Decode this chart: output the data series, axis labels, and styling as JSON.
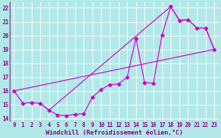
{
  "xlabel": "Windchill (Refroidissement éolien,°C)",
  "background_color": "#b2e8e8",
  "grid_color": "#ffffff",
  "line_color": "#cc00cc",
  "xlim": [
    -0.5,
    23.5
  ],
  "ylim": [
    13.8,
    22.4
  ],
  "xticks": [
    0,
    1,
    2,
    3,
    4,
    5,
    6,
    7,
    8,
    9,
    10,
    11,
    12,
    13,
    14,
    15,
    16,
    17,
    18,
    19,
    20,
    21,
    22,
    23
  ],
  "yticks": [
    14,
    15,
    16,
    17,
    18,
    19,
    20,
    21,
    22
  ],
  "curve1": [
    [
      0,
      16.0
    ],
    [
      1,
      15.1
    ],
    [
      2,
      15.15
    ],
    [
      3,
      15.1
    ],
    [
      4,
      14.6
    ],
    [
      5,
      14.25
    ],
    [
      6,
      14.2
    ],
    [
      7,
      14.3
    ],
    [
      8,
      14.35
    ],
    [
      9,
      15.55
    ],
    [
      10,
      16.1
    ],
    [
      11,
      16.45
    ],
    [
      12,
      16.5
    ],
    [
      13,
      17.0
    ],
    [
      14,
      19.8
    ],
    [
      15,
      16.6
    ],
    [
      16,
      16.55
    ],
    [
      17,
      20.05
    ],
    [
      18,
      22.1
    ],
    [
      19,
      21.1
    ],
    [
      20,
      21.15
    ],
    [
      21,
      20.55
    ],
    [
      22,
      20.55
    ],
    [
      23,
      19.0
    ]
  ],
  "curve2": [
    [
      0,
      16.0
    ],
    [
      23,
      19.0
    ]
  ],
  "curve3": [
    [
      3,
      15.1
    ],
    [
      4,
      14.6
    ],
    [
      18,
      22.1
    ],
    [
      19,
      21.1
    ],
    [
      20,
      21.15
    ],
    [
      21,
      20.55
    ],
    [
      22,
      20.55
    ],
    [
      23,
      19.0
    ]
  ],
  "marker_size": 2.5,
  "linewidth": 0.9,
  "figsize": [
    3.2,
    2.0
  ],
  "dpi": 100,
  "tick_fontsize": 5.5,
  "xlabel_fontsize": 6.5
}
